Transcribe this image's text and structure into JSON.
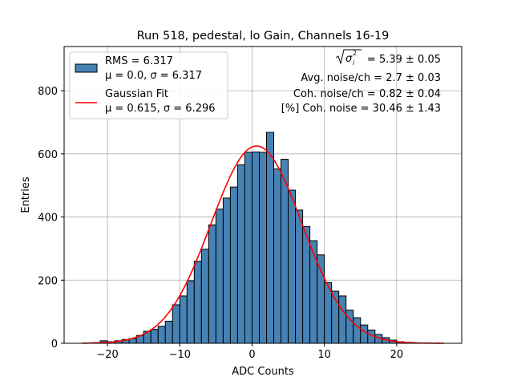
{
  "chart_data": {
    "type": "bar",
    "title": "Run 518, pedestal, lo Gain, Channels 16-19",
    "xlabel": "ADC Counts",
    "ylabel": "Entries",
    "xlim": [
      -26,
      29
    ],
    "ylim": [
      0,
      940
    ],
    "xticks": [
      -20,
      -10,
      0,
      10,
      20
    ],
    "yticks": [
      0,
      200,
      400,
      600,
      800
    ],
    "grid": true,
    "bin_width": 1,
    "bin_left_edges": [
      -22,
      -21,
      -20,
      -19,
      -18,
      -17,
      -16,
      -15,
      -14,
      -13,
      -12,
      -11,
      -10,
      -9,
      -8,
      -7,
      -6,
      -5,
      -4,
      -3,
      -2,
      -1,
      0,
      1,
      2,
      3,
      4,
      5,
      6,
      7,
      8,
      9,
      10,
      11,
      12,
      13,
      14,
      15,
      16,
      17,
      18,
      19,
      20,
      21
    ],
    "counts": [
      2,
      8,
      5,
      8,
      12,
      15,
      25,
      38,
      44,
      54,
      70,
      122,
      150,
      198,
      260,
      298,
      375,
      425,
      460,
      495,
      565,
      605,
      606,
      605,
      668,
      552,
      583,
      485,
      422,
      370,
      325,
      280,
      192,
      165,
      150,
      105,
      81,
      58,
      42,
      28,
      18,
      10,
      5,
      2
    ],
    "series": [
      {
        "name": "RMS = 6.317",
        "name_line2": "μ = 0.0, σ = 6.317",
        "style": "histogram",
        "color": "#4682b4",
        "edge_color": "#000000"
      },
      {
        "name": "Gaussian Fit",
        "name_line2": "μ = 0.615, σ = 6.296",
        "style": "line",
        "color": "#ff0000",
        "amplitude": 625,
        "mu": 0.615,
        "sigma": 6.296,
        "x_range": [
          -23.5,
          26.5
        ]
      }
    ],
    "legend": {
      "placement": "top-left"
    },
    "annotations": {
      "sigma_prefix": "= 5.39 ± 0.05",
      "avg_noise": "Avg. noise/ch = 2.7 ± 0.03",
      "coh_noise": "Coh. noise/ch = 0.82 ± 0.04",
      "coh_noise_pct": "[%] Coh. noise = 30.46 ± 1.43"
    }
  }
}
